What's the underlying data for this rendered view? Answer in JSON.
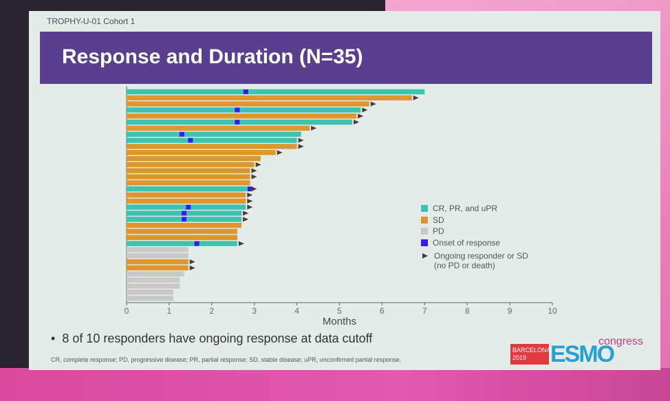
{
  "slide": {
    "tag": "TROPHY-U-01 Cohort 1",
    "title": "Response and Duration (N=35)",
    "bullet": "8 of 10 responders have ongoing response at data cutoff",
    "footnote": "CR, complete response; PD, progressive disease; PR, partial response; SD, stable disease; uPR, unconfirmed partial response.",
    "logo": {
      "city": "BARCELONA",
      "year": "2019",
      "name": "ESMO",
      "suffix": "congress"
    }
  },
  "chart_data": {
    "type": "swimmer",
    "xlabel": "Months",
    "xlim": [
      0,
      10
    ],
    "xticks": [
      "0",
      "1",
      "2",
      "3",
      "4",
      "5",
      "6",
      "7",
      "8",
      "9",
      "10"
    ],
    "colors": {
      "response": "#3cc4b0",
      "SD": "#e0962e",
      "PD": "#c8c8c8",
      "onset": "#3a1af0",
      "ongoing": "#4a3a3a"
    },
    "legend": [
      {
        "key": "response",
        "label": "CR, PR, and uPR"
      },
      {
        "key": "SD",
        "label": "SD"
      },
      {
        "key": "PD",
        "label": "PD"
      },
      {
        "key": "onset",
        "label": "Onset of response"
      },
      {
        "key": "ongoing",
        "label": "Ongoing responder or SD",
        "label2": "(no PD or death)"
      }
    ],
    "patients": [
      {
        "status": "response",
        "months": 7.0,
        "onset": 2.8,
        "ongoing": false
      },
      {
        "status": "SD",
        "months": 6.7,
        "ongoing": true
      },
      {
        "status": "SD",
        "months": 5.7,
        "ongoing": true
      },
      {
        "status": "response",
        "months": 5.5,
        "onset": 2.6,
        "ongoing": true
      },
      {
        "status": "SD",
        "months": 5.4,
        "ongoing": true
      },
      {
        "status": "response",
        "months": 5.3,
        "onset": 2.6,
        "ongoing": true
      },
      {
        "status": "SD",
        "months": 4.3,
        "ongoing": true
      },
      {
        "status": "response",
        "months": 4.1,
        "onset": 1.3,
        "ongoing": false
      },
      {
        "status": "response",
        "months": 4.0,
        "onset": 1.5,
        "ongoing": true
      },
      {
        "status": "SD",
        "months": 4.0,
        "ongoing": true
      },
      {
        "status": "SD",
        "months": 3.5,
        "ongoing": true
      },
      {
        "status": "SD",
        "months": 3.15,
        "ongoing": false
      },
      {
        "status": "SD",
        "months": 3.0,
        "ongoing": true
      },
      {
        "status": "SD",
        "months": 2.9,
        "ongoing": true
      },
      {
        "status": "SD",
        "months": 2.9,
        "ongoing": true
      },
      {
        "status": "SD",
        "months": 2.9,
        "ongoing": false
      },
      {
        "status": "response",
        "months": 2.9,
        "onset": 2.9,
        "ongoing": true
      },
      {
        "status": "SD",
        "months": 2.8,
        "ongoing": true
      },
      {
        "status": "SD",
        "months": 2.8,
        "ongoing": true
      },
      {
        "status": "response",
        "months": 2.8,
        "onset": 1.45,
        "ongoing": true
      },
      {
        "status": "response",
        "months": 2.7,
        "onset": 1.35,
        "ongoing": true
      },
      {
        "status": "response",
        "months": 2.7,
        "onset": 1.35,
        "ongoing": true
      },
      {
        "status": "SD",
        "months": 2.7,
        "ongoing": false
      },
      {
        "status": "SD",
        "months": 2.6,
        "ongoing": false
      },
      {
        "status": "SD",
        "months": 2.6,
        "ongoing": false
      },
      {
        "status": "response",
        "months": 2.6,
        "onset": 1.65,
        "ongoing": true
      },
      {
        "status": "PD",
        "months": 1.45,
        "ongoing": false
      },
      {
        "status": "PD",
        "months": 1.45,
        "ongoing": false
      },
      {
        "status": "SD",
        "months": 1.45,
        "ongoing": true
      },
      {
        "status": "SD",
        "months": 1.45,
        "ongoing": true
      },
      {
        "status": "PD",
        "months": 1.35,
        "ongoing": false
      },
      {
        "status": "PD",
        "months": 1.25,
        "ongoing": false
      },
      {
        "status": "PD",
        "months": 1.25,
        "ongoing": false
      },
      {
        "status": "PD",
        "months": 1.1,
        "ongoing": false
      },
      {
        "status": "PD",
        "months": 1.1,
        "ongoing": false
      }
    ]
  }
}
